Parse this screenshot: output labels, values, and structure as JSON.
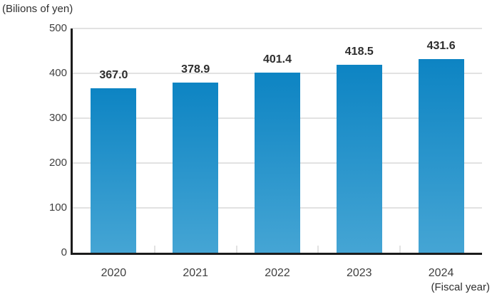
{
  "chart": {
    "unit_label": "(Bilions of yen)",
    "fiscal_label": "(Fiscal year)"
  },
  "chart_data": {
    "type": "bar",
    "title": "",
    "ylabel": "(Bilions of yen)",
    "xlabel": "(Fiscal year)",
    "categories": [
      "2020",
      "2021",
      "2022",
      "2023",
      "2024"
    ],
    "values": [
      367.0,
      378.9,
      401.4,
      418.5,
      431.6
    ],
    "value_labels": [
      "367.0",
      "378.9",
      "401.4",
      "418.5",
      "431.6"
    ],
    "ylim": [
      0,
      500
    ],
    "yticks": [
      0,
      100,
      200,
      300,
      400,
      500
    ],
    "grid": "horizontal",
    "legend": "none",
    "colors": {
      "bar_gradient_top": "#0d84c3",
      "bar_gradient_bottom": "#45a5d4",
      "gridline": "#e2e2e2",
      "axis": "#1b1b1b",
      "tick_label": "#3f3f3f",
      "value_label": "#2d2d2d"
    }
  }
}
